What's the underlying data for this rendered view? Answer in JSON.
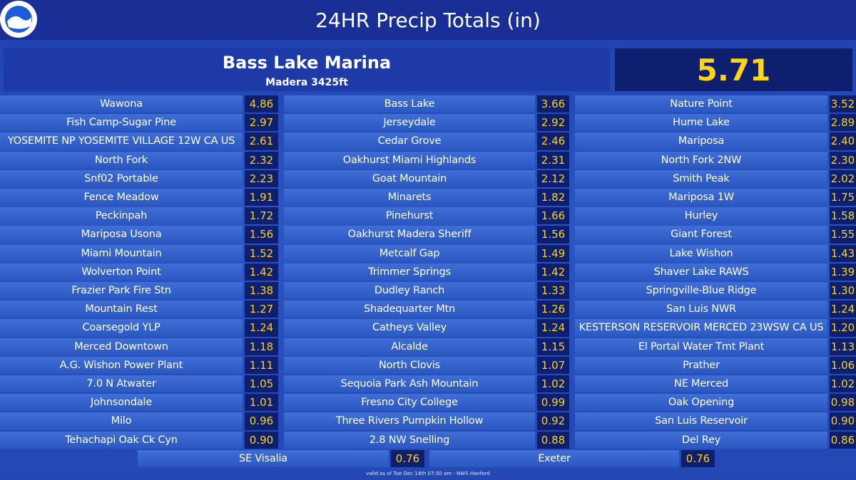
{
  "header": {
    "title": "24HR Precip Totals (in)"
  },
  "featured": {
    "name": "Bass Lake Marina",
    "subtitle": "Madera 3425ft",
    "value": "5.71"
  },
  "columns": [
    [
      [
        "Wawona",
        "4.86"
      ],
      [
        "Fish Camp-Sugar Pine",
        "2.97"
      ],
      [
        "YOSEMITE NP YOSEMITE VILLAGE 12W CA US",
        "2.61"
      ],
      [
        "North Fork",
        "2.32"
      ],
      [
        "Snf02 Portable",
        "2.23"
      ],
      [
        "Fence Meadow",
        "1.91"
      ],
      [
        "Peckinpah",
        "1.72"
      ],
      [
        "Mariposa Usona",
        "1.56"
      ],
      [
        "Miami Mountain",
        "1.52"
      ],
      [
        "Wolverton Point",
        "1.42"
      ],
      [
        "Frazier Park Fire Stn",
        "1.38"
      ],
      [
        "Mountain Rest",
        "1.27"
      ],
      [
        "Coarsegold YLP",
        "1.24"
      ],
      [
        "Merced Downtown",
        "1.18"
      ],
      [
        "A.G. Wishon Power Plant",
        "1.11"
      ],
      [
        "7.0 N Atwater",
        "1.05"
      ],
      [
        "Johnsondale",
        "1.01"
      ],
      [
        "Milo",
        "0.96"
      ],
      [
        "Tehachapi Oak Ck Cyn",
        "0.90"
      ]
    ],
    [
      [
        "Bass Lake",
        "3.66"
      ],
      [
        "Jerseydale",
        "2.92"
      ],
      [
        "Cedar Grove",
        "2.46"
      ],
      [
        "Oakhurst Miami Highlands",
        "2.31"
      ],
      [
        "Goat Mountain",
        "2.12"
      ],
      [
        "Minarets",
        "1.82"
      ],
      [
        "Pinehurst",
        "1.66"
      ],
      [
        "Oakhurst Madera Sheriff",
        "1.56"
      ],
      [
        "Metcalf Gap",
        "1.49"
      ],
      [
        "Trimmer Springs",
        "1.42"
      ],
      [
        "Dudley Ranch",
        "1.33"
      ],
      [
        "Shadequarter Mtn",
        "1.26"
      ],
      [
        "Catheys Valley",
        "1.24"
      ],
      [
        "Alcalde",
        "1.15"
      ],
      [
        "North Clovis",
        "1.07"
      ],
      [
        "Sequoia Park Ash Mountain",
        "1.02"
      ],
      [
        "Fresno City College",
        "0.99"
      ],
      [
        "Three Rivers Pumpkin Hollow",
        "0.92"
      ],
      [
        "2.8 NW Snelling",
        "0.88"
      ]
    ],
    [
      [
        "Nature Point",
        "3.52"
      ],
      [
        "Hume Lake",
        "2.89"
      ],
      [
        "Mariposa",
        "2.40"
      ],
      [
        "North Fork 2NW",
        "2.30"
      ],
      [
        "Smith Peak",
        "2.02"
      ],
      [
        "Mariposa 1W",
        "1.75"
      ],
      [
        "Hurley",
        "1.58"
      ],
      [
        "Giant Forest",
        "1.55"
      ],
      [
        "Lake Wishon",
        "1.43"
      ],
      [
        "Shaver Lake RAWS",
        "1.39"
      ],
      [
        "Springville-Blue Ridge",
        "1.30"
      ],
      [
        "San Luis NWR",
        "1.24"
      ],
      [
        "KESTERSON RESERVOIR MERCED 23WSW CA US",
        "1.20"
      ],
      [
        "El Portal Water Tmt Plant",
        "1.13"
      ],
      [
        "Prather",
        "1.06"
      ],
      [
        "NE Merced",
        "1.02"
      ],
      [
        "Oak Opening",
        "0.98"
      ],
      [
        "San Luis Reservoir",
        "0.90"
      ],
      [
        "Del Rey",
        "0.86"
      ]
    ]
  ],
  "bottom": [
    [
      "SE Visalia",
      "0.76"
    ],
    [
      "Exeter",
      "0.76"
    ]
  ],
  "footer": "valid as of Tue Dec 14th 07:50 am - NWS Hanford"
}
